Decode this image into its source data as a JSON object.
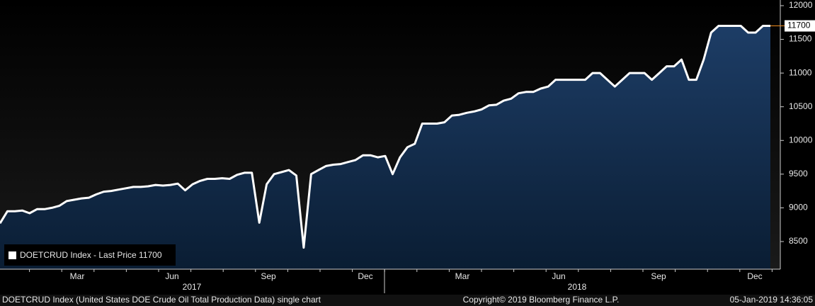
{
  "chart_data": {
    "type": "area",
    "legend": "DOETCRUD Index - Last Price 11700",
    "footer_left": "DOETCRUD Index (United States DOE Crude Oil Total Production Data) single chart",
    "footer_center": "Copyright© 2019 Bloomberg Finance L.P.",
    "footer_right": "05-Jan-2019 14:36:05",
    "month_labels": [
      "Mar",
      "Jun",
      "Sep",
      "Dec",
      "Mar",
      "Jun",
      "Sep",
      "Dec"
    ],
    "year_labels": [
      "2017",
      "2018"
    ],
    "last_price": 11700,
    "line_color": "#ffffff",
    "ylim": [
      8090,
      12084
    ],
    "yticks": [
      8500,
      9000,
      9500,
      10000,
      10500,
      11000,
      11500,
      12000
    ],
    "values": [
      8770,
      8950,
      8950,
      8960,
      8920,
      8980,
      8980,
      9000,
      9030,
      9100,
      9120,
      9140,
      9150,
      9200,
      9240,
      9250,
      9270,
      9290,
      9310,
      9310,
      9320,
      9340,
      9330,
      9340,
      9360,
      9260,
      9350,
      9400,
      9430,
      9430,
      9440,
      9430,
      9490,
      9520,
      9520,
      8780,
      9350,
      9500,
      9530,
      9560,
      9480,
      8410,
      9500,
      9560,
      9620,
      9640,
      9650,
      9680,
      9710,
      9780,
      9780,
      9750,
      9770,
      9500,
      9750,
      9900,
      9950,
      10250,
      10250,
      10250,
      10270,
      10370,
      10380,
      10410,
      10430,
      10460,
      10520,
      10530,
      10590,
      10620,
      10700,
      10720,
      10720,
      10770,
      10800,
      10900,
      10900,
      10900,
      10900,
      10900,
      11000,
      11000,
      10900,
      10800,
      10900,
      11000,
      11000,
      11000,
      10900,
      11000,
      11100,
      11100,
      11200,
      10900,
      10900,
      11200,
      11600,
      11700,
      11700,
      11700,
      11700,
      11600,
      11600,
      11700,
      11700
    ]
  }
}
